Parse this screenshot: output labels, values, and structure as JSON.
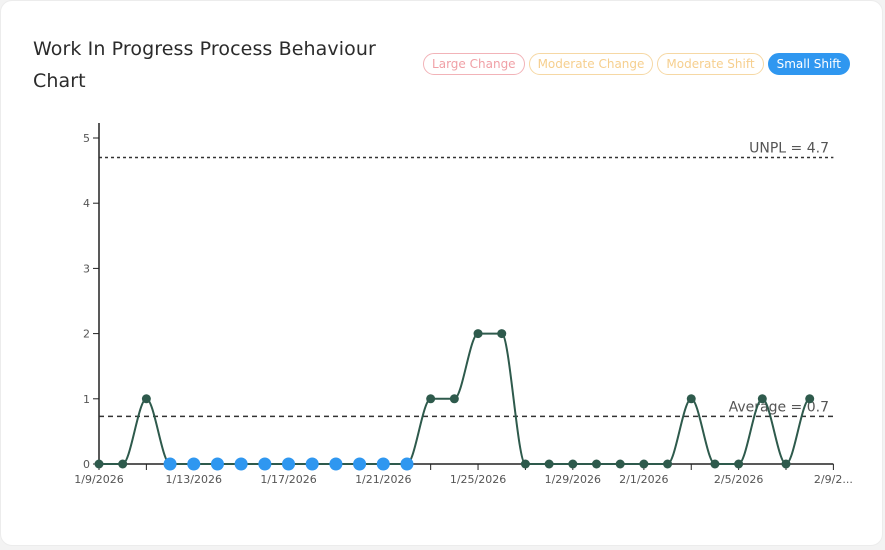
{
  "card": {
    "title": "Work In Progress Process Behaviour Chart"
  },
  "badges": [
    {
      "label": "Large Change",
      "color": "#f0a0a6",
      "active": false
    },
    {
      "label": "Moderate Change",
      "color": "#f6cf8e",
      "active": false
    },
    {
      "label": "Moderate Shift",
      "color": "#f6cf8e",
      "active": false
    },
    {
      "label": "Small Shift",
      "color": "#2f97f0",
      "active": true
    }
  ],
  "chart_data": {
    "type": "line",
    "title": "Work In Progress Process Behaviour Chart",
    "xlabel": "",
    "ylabel": "",
    "ylim": [
      0,
      5
    ],
    "yticks": [
      0,
      1,
      2,
      3,
      4,
      5
    ],
    "grid": false,
    "x": [
      "1/9/2026",
      "1/10/2026",
      "1/11/2026",
      "1/12/2026",
      "1/13/2026",
      "1/14/2026",
      "1/15/2026",
      "1/16/2026",
      "1/17/2026",
      "1/18/2026",
      "1/19/2026",
      "1/20/2026",
      "1/21/2026",
      "1/22/2026",
      "1/23/2026",
      "1/24/2026",
      "1/25/2026",
      "1/26/2026",
      "1/27/2026",
      "1/28/2026",
      "1/29/2026",
      "1/30/2026",
      "1/31/2026",
      "2/1/2026",
      "2/2/2026",
      "2/3/2026",
      "2/4/2026",
      "2/5/2026",
      "2/6/2026",
      "2/7/2026",
      "2/8/2026"
    ],
    "series": [
      {
        "name": "Work In Progress",
        "color": "#2e5a4c",
        "values": [
          0,
          0,
          1,
          0,
          0,
          0,
          0,
          0,
          0,
          0,
          0,
          0,
          0,
          0,
          1,
          1,
          2,
          2,
          0,
          0,
          0,
          0,
          0,
          0,
          0,
          1,
          0,
          0,
          1,
          0,
          1
        ]
      }
    ],
    "signals": {
      "Small Shift": {
        "color": "#2f97f0",
        "indices": [
          3,
          4,
          5,
          6,
          7,
          8,
          9,
          10,
          11,
          12,
          13
        ]
      }
    },
    "xtick_labels": [
      "1/9/2026",
      "1/13/2026",
      "1/17/2026",
      "1/21/2026",
      "1/25/2026",
      "1/29/2026",
      "2/1/2026",
      "2/5/2026",
      "2/9/2..."
    ],
    "reference_lines": [
      {
        "label": "UNPL = 4.7",
        "value": 4.7,
        "style": "dotted"
      },
      {
        "label": "Average = 0.7",
        "value": 0.73,
        "style": "dashed"
      }
    ]
  }
}
